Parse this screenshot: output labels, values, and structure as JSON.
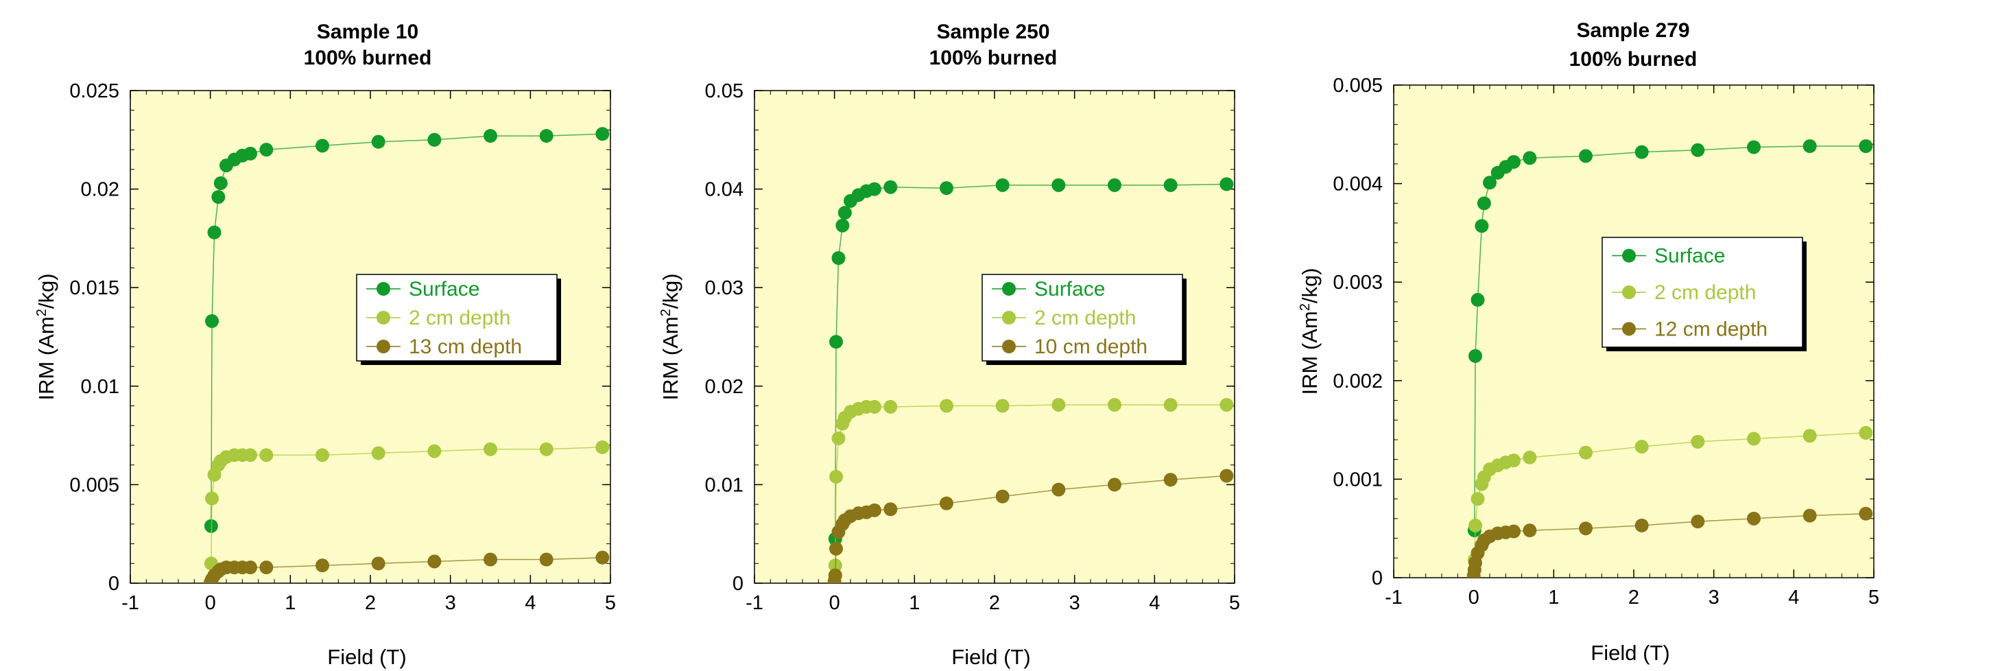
{
  "chart_data": [
    {
      "type": "scatter",
      "title": "Sample 10",
      "subtitle": "100% burned",
      "xlabel": "Field (T)",
      "ylabel_main": "IRM (Am",
      "ylabel_sup": "2",
      "ylabel_tail": "/kg)",
      "xlim": [
        -1,
        5
      ],
      "ylim": [
        0,
        0.025
      ],
      "xticks": [
        "-1",
        "0",
        "1",
        "2",
        "3",
        "4",
        "5"
      ],
      "yticks": [
        "0",
        "0.005",
        "0.01",
        "0.015",
        "0.02",
        "0.025"
      ],
      "grid": false,
      "legend": "center-right",
      "series": [
        {
          "name": "Surface",
          "color": "#119b2a",
          "x": [
            0.01,
            0.02,
            0.05,
            0.1,
            0.13,
            0.2,
            0.3,
            0.4,
            0.5,
            0.7,
            1.4,
            2.1,
            2.8,
            3.5,
            4.2,
            4.9
          ],
          "y": [
            0.0029,
            0.0133,
            0.0178,
            0.0196,
            0.0203,
            0.0212,
            0.0215,
            0.0217,
            0.0218,
            0.022,
            0.0222,
            0.0224,
            0.0225,
            0.0227,
            0.0227,
            0.0228
          ]
        },
        {
          "name": "2 cm depth",
          "color": "#a9c83e",
          "x": [
            0.01,
            0.02,
            0.05,
            0.1,
            0.13,
            0.2,
            0.3,
            0.4,
            0.5,
            0.7,
            1.4,
            2.1,
            2.8,
            3.5,
            4.2,
            4.9
          ],
          "y": [
            0.001,
            0.0043,
            0.0055,
            0.006,
            0.0062,
            0.0064,
            0.0065,
            0.0065,
            0.0065,
            0.0065,
            0.0065,
            0.0066,
            0.0067,
            0.0068,
            0.0068,
            0.0069
          ]
        },
        {
          "name": "13 cm depth",
          "color": "#8a7418",
          "x": [
            0.0,
            0.01,
            0.02,
            0.05,
            0.1,
            0.13,
            0.2,
            0.3,
            0.4,
            0.5,
            0.7,
            1.4,
            2.1,
            2.8,
            3.5,
            4.2,
            4.9
          ],
          "y": [
            0.0,
            0.0001,
            0.0002,
            0.0004,
            0.0006,
            0.0007,
            0.0008,
            0.0008,
            0.0008,
            0.0008,
            0.0008,
            0.0009,
            0.001,
            0.0011,
            0.0012,
            0.0012,
            0.0013
          ]
        }
      ]
    },
    {
      "type": "scatter",
      "title": "Sample 250",
      "subtitle": "100% burned",
      "xlabel": "Field (T)",
      "ylabel_main": "IRM (Am",
      "ylabel_sup": "2",
      "ylabel_tail": "/kg)",
      "xlim": [
        -1,
        5
      ],
      "ylim": [
        0,
        0.05
      ],
      "xticks": [
        "-1",
        "0",
        "1",
        "2",
        "3",
        "4",
        "5"
      ],
      "yticks": [
        "0",
        "0.01",
        "0.02",
        "0.03",
        "0.04",
        "0.05"
      ],
      "grid": false,
      "legend": "center-right",
      "series": [
        {
          "name": "Surface",
          "color": "#119b2a",
          "x": [
            0.01,
            0.02,
            0.05,
            0.1,
            0.13,
            0.2,
            0.3,
            0.4,
            0.5,
            0.7,
            1.4,
            2.1,
            2.8,
            3.5,
            4.2,
            4.9
          ],
          "y": [
            0.0045,
            0.0245,
            0.033,
            0.0363,
            0.0376,
            0.0388,
            0.0394,
            0.0398,
            0.04,
            0.0402,
            0.0401,
            0.0404,
            0.0404,
            0.0404,
            0.0404,
            0.0405
          ]
        },
        {
          "name": "2 cm depth",
          "color": "#a9c83e",
          "x": [
            0.01,
            0.02,
            0.05,
            0.1,
            0.13,
            0.2,
            0.3,
            0.4,
            0.5,
            0.7,
            1.4,
            2.1,
            2.8,
            3.5,
            4.2,
            4.9
          ],
          "y": [
            0.0018,
            0.0108,
            0.0147,
            0.0162,
            0.0168,
            0.0174,
            0.0177,
            0.0179,
            0.0179,
            0.0179,
            0.018,
            0.018,
            0.0181,
            0.0181,
            0.0181,
            0.0181
          ]
        },
        {
          "name": "10 cm depth",
          "color": "#8a7418",
          "x": [
            0.0,
            0.01,
            0.02,
            0.05,
            0.1,
            0.13,
            0.2,
            0.3,
            0.4,
            0.5,
            0.7,
            1.4,
            2.1,
            2.8,
            3.5,
            4.2,
            4.9
          ],
          "y": [
            0.0002,
            0.0008,
            0.0035,
            0.0052,
            0.006,
            0.0064,
            0.0068,
            0.0071,
            0.0072,
            0.0074,
            0.0075,
            0.0081,
            0.0088,
            0.0095,
            0.01,
            0.0105,
            0.0109
          ]
        }
      ]
    },
    {
      "type": "scatter",
      "title": "Sample 279",
      "subtitle": "100% burned",
      "xlabel": "Field (T)",
      "ylabel_main": "IRM (Am",
      "ylabel_sup": "2",
      "ylabel_tail": "/kg)",
      "xlim": [
        -1,
        5
      ],
      "ylim": [
        0,
        0.005
      ],
      "xticks": [
        "-1",
        "0",
        "1",
        "2",
        "3",
        "4",
        "5"
      ],
      "yticks": [
        "0",
        "0.001",
        "0.002",
        "0.003",
        "0.004",
        "0.005"
      ],
      "grid": false,
      "legend": "center-right",
      "series": [
        {
          "name": "Surface",
          "color": "#119b2a",
          "x": [
            0.01,
            0.02,
            0.05,
            0.1,
            0.13,
            0.2,
            0.3,
            0.4,
            0.5,
            0.7,
            1.4,
            2.1,
            2.8,
            3.5,
            4.2,
            4.9
          ],
          "y": [
            0.00048,
            0.00225,
            0.00282,
            0.00357,
            0.0038,
            0.00401,
            0.00411,
            0.00417,
            0.00422,
            0.00426,
            0.00428,
            0.00432,
            0.00434,
            0.00437,
            0.00438,
            0.00438
          ]
        },
        {
          "name": "2 cm depth",
          "color": "#a9c83e",
          "x": [
            0.01,
            0.02,
            0.05,
            0.1,
            0.13,
            0.2,
            0.3,
            0.4,
            0.5,
            0.7,
            1.4,
            2.1,
            2.8,
            3.5,
            4.2,
            4.9
          ],
          "y": [
            0.00018,
            0.00053,
            0.0008,
            0.00095,
            0.00102,
            0.0011,
            0.00114,
            0.00117,
            0.00119,
            0.00122,
            0.00127,
            0.00133,
            0.00138,
            0.00141,
            0.00144,
            0.00147
          ]
        },
        {
          "name": "12 cm depth",
          "color": "#8a7418",
          "x": [
            0.0,
            0.01,
            0.02,
            0.05,
            0.1,
            0.13,
            0.2,
            0.3,
            0.4,
            0.5,
            0.7,
            1.4,
            2.1,
            2.8,
            3.5,
            4.2,
            4.9
          ],
          "y": [
            2e-05,
            8e-05,
            0.00015,
            0.00025,
            0.00033,
            0.00038,
            0.00042,
            0.00045,
            0.00046,
            0.00047,
            0.00048,
            0.0005,
            0.00053,
            0.00057,
            0.0006,
            0.00063,
            0.00065
          ]
        }
      ]
    }
  ]
}
